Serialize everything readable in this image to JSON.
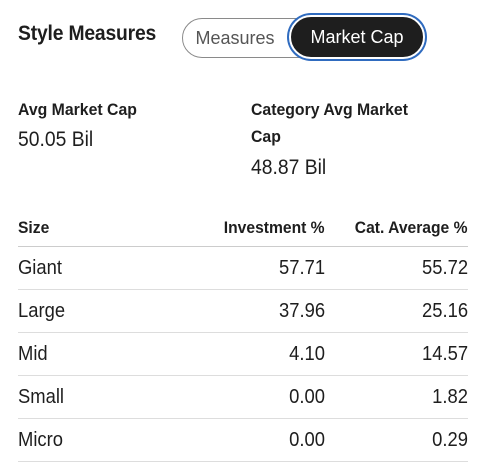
{
  "section": {
    "title": "Style Measures"
  },
  "toggle": {
    "options": [
      "Measures",
      "Market Cap"
    ],
    "selected": "Market Cap"
  },
  "stats": {
    "avg_market_cap": {
      "label": "Avg Market Cap",
      "value": "50.05 Bil"
    },
    "category_avg_market_cap": {
      "label_line1": "Category Avg Market",
      "label_line2": "Cap",
      "value": "48.87 Bil"
    }
  },
  "table": {
    "headers": [
      "Size",
      "Investment %",
      "Cat. Average %"
    ],
    "rows": [
      {
        "size": "Giant",
        "investment": "57.71",
        "cat_average": "55.72"
      },
      {
        "size": "Large",
        "investment": "37.96",
        "cat_average": "25.16"
      },
      {
        "size": "Mid",
        "investment": "4.10",
        "cat_average": "14.57"
      },
      {
        "size": "Small",
        "investment": "0.00",
        "cat_average": "1.82"
      },
      {
        "size": "Micro",
        "investment": "0.00",
        "cat_average": "0.29"
      }
    ]
  },
  "colors": {
    "active_toggle_bg": "#1e1e1e",
    "focus_ring": "#2f6bbf",
    "text": "#1e1e1e"
  }
}
